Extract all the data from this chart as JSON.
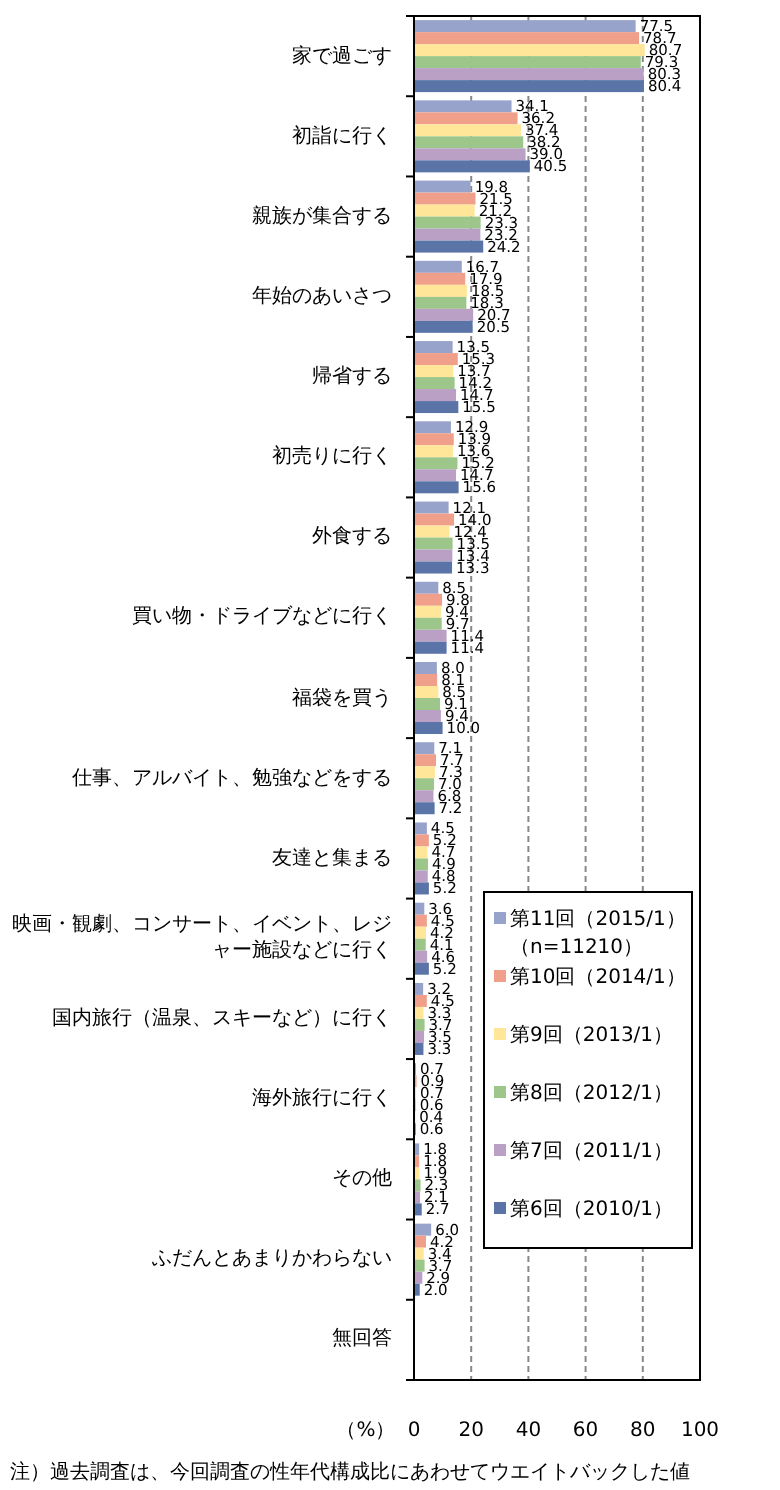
{
  "chart_data": {
    "type": "bar",
    "orientation": "horizontal",
    "xlabel": "（%）",
    "categories": [
      "家で過ごす",
      "初詣に行く",
      "親族が集合する",
      "年始のあいさつ",
      "帰省する",
      "初売りに行く",
      "外食する",
      "買い物・ドライブなどに行く",
      "福袋を買う",
      "仕事、アルバイト、勉強などをする",
      "友達と集まる",
      "映画・観劇、コンサート、イベント、レジャー施設などに行く",
      "国内旅行（温泉、スキーなど）に行く",
      "海外旅行に行く",
      "その他",
      "ふだんとあまりかわらない",
      "無回答"
    ],
    "series": [
      {
        "name": "第11回（2015/1）",
        "color": "#98a3cc",
        "values": [
          77.5,
          34.1,
          19.8,
          16.7,
          13.5,
          12.9,
          12.1,
          8.5,
          8.0,
          7.1,
          4.5,
          3.6,
          3.2,
          0.7,
          1.8,
          6.0,
          null
        ],
        "value_labels": [
          "77.5",
          "34.1",
          "19.8",
          "16.7",
          "13.5",
          "12.9",
          "12.1",
          "8.5",
          "8.0",
          "7.1",
          "4.5",
          "3.6",
          "3.2",
          "0.7",
          "1.8",
          "6.0",
          null
        ]
      },
      {
        "name": "第10回（2014/1）",
        "color": "#f0a08a",
        "values": [
          78.7,
          36.2,
          21.5,
          17.9,
          15.3,
          13.9,
          14.0,
          9.8,
          8.1,
          7.7,
          5.2,
          4.5,
          4.5,
          0.9,
          1.8,
          4.2,
          null
        ],
        "value_labels": [
          "78.7",
          "36.2",
          "21.5",
          "17.9",
          "15.3",
          "13.9",
          "14.0",
          "9.8",
          "8.1",
          "7.7",
          "5.2",
          "4.5",
          "4.5",
          "0.9",
          "1.8",
          "4.2",
          null
        ]
      },
      {
        "name": "第9回（2013/1）",
        "color": "#ffe699",
        "values": [
          80.7,
          37.4,
          21.2,
          18.5,
          13.7,
          13.6,
          12.4,
          9.4,
          8.5,
          7.3,
          4.7,
          4.2,
          3.3,
          0.7,
          1.9,
          3.4,
          null
        ],
        "value_labels": [
          "80.7",
          "37.4",
          "21.2",
          "18.5",
          "13.7",
          "13.6",
          "12.4",
          "9.4",
          "8.5",
          "7.3",
          "4.7",
          "4.2",
          "3.3",
          "0.7",
          "1.9",
          "3.4",
          null
        ]
      },
      {
        "name": "第8回（2012/1）",
        "color": "#9dc78a",
        "values": [
          79.3,
          38.2,
          23.3,
          18.3,
          14.2,
          15.2,
          13.5,
          9.7,
          9.1,
          7.0,
          4.9,
          4.1,
          3.7,
          0.6,
          2.3,
          3.7,
          null
        ],
        "value_labels": [
          "79.3",
          "38.2",
          "23.3",
          "18.3",
          "14.2",
          "15.2",
          "13.5",
          "9.7",
          "9.1",
          "7.0",
          "4.9",
          "4.1",
          "3.7",
          "0.6",
          "2.3",
          "3.7",
          null
        ]
      },
      {
        "name": "第7回（2011/1）",
        "color": "#b9a0c4",
        "values": [
          80.3,
          39.0,
          23.2,
          20.7,
          14.7,
          14.7,
          13.4,
          11.4,
          9.4,
          6.8,
          4.8,
          4.6,
          3.5,
          0.4,
          2.1,
          2.9,
          null
        ],
        "value_labels": [
          "80.3",
          "39.0",
          "23.2",
          "20.7",
          "14.7",
          "14.7",
          "13.4",
          "11.4",
          "9.4",
          "6.8",
          "4.8",
          "4.6",
          "3.5",
          "0.4",
          "2.1",
          "2.9",
          null
        ]
      },
      {
        "name": "第6回（2010/1）",
        "color": "#5a74a8",
        "values": [
          80.4,
          40.5,
          24.2,
          20.5,
          15.5,
          15.6,
          13.3,
          11.4,
          10.0,
          7.2,
          5.2,
          5.2,
          3.3,
          0.6,
          2.7,
          2.0,
          null
        ],
        "value_labels": [
          "80.4",
          "40.5",
          "24.2",
          "20.5",
          "15.5",
          "15.6",
          "13.3",
          "11.4",
          "10.0",
          "7.2",
          "5.2",
          "5.2",
          "3.3",
          "0.6",
          "2.7",
          "2.0",
          null
        ]
      }
    ],
    "xlim": [
      0,
      100
    ],
    "xticks": [
      0,
      20,
      40,
      60,
      80,
      100
    ],
    "grid": "x",
    "legend": "bottom right",
    "annotations": [
      "（n=11210）",
      "注）過去調査は、今回調査の性年代構成比にあわせてウエイトバックした値"
    ]
  }
}
